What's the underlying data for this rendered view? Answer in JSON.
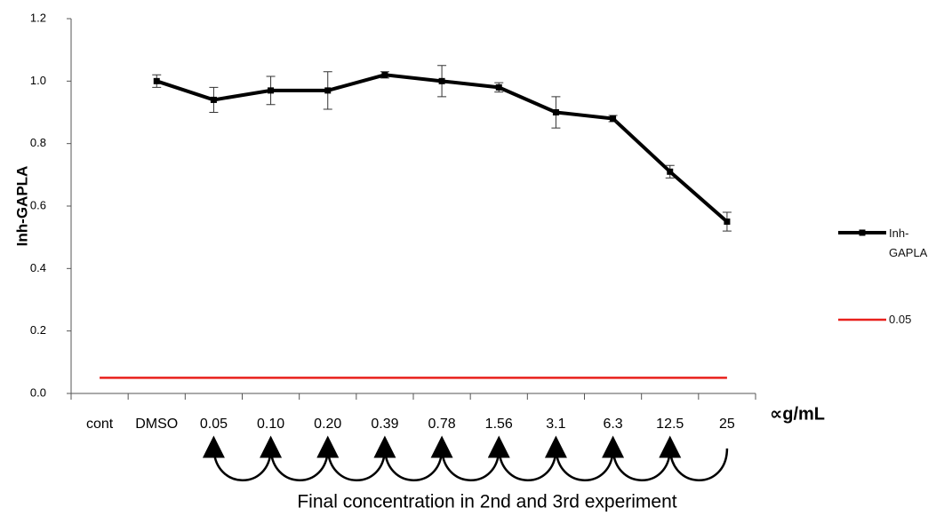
{
  "chart_data": {
    "type": "line",
    "y_label": "Inh-GAPLA",
    "x_label": "∝g/mL",
    "annotation": "Final concentration in 2nd and 3rd experiment",
    "categories": [
      "cont",
      "DMSO",
      "0.05",
      "0.10",
      "0.20",
      "0.39",
      "0.78",
      "1.56",
      "3.1",
      "6.3",
      "12.5",
      "25"
    ],
    "series": [
      {
        "name": "Inh-GAPLA",
        "color": "#000000",
        "values": [
          null,
          1.0,
          0.94,
          0.97,
          0.97,
          1.02,
          1.0,
          0.98,
          0.9,
          0.88,
          0.71,
          0.55
        ],
        "errors": [
          null,
          0.02,
          0.04,
          0.045,
          0.06,
          0.01,
          0.05,
          0.015,
          0.05,
          0.01,
          0.02,
          0.03
        ]
      },
      {
        "name": "0.05",
        "color": "#e8201c",
        "values": [
          0.05,
          0.05,
          0.05,
          0.05,
          0.05,
          0.05,
          0.05,
          0.05,
          0.05,
          0.05,
          0.05,
          0.05
        ]
      }
    ],
    "ylim": [
      0,
      1.2
    ],
    "yticks": [
      {
        "value": 0,
        "label": "0.0"
      },
      0.2,
      0.4,
      0.6,
      0.8,
      {
        "value": 1,
        "label": "1.0"
      },
      1.2
    ],
    "legend": "right"
  }
}
